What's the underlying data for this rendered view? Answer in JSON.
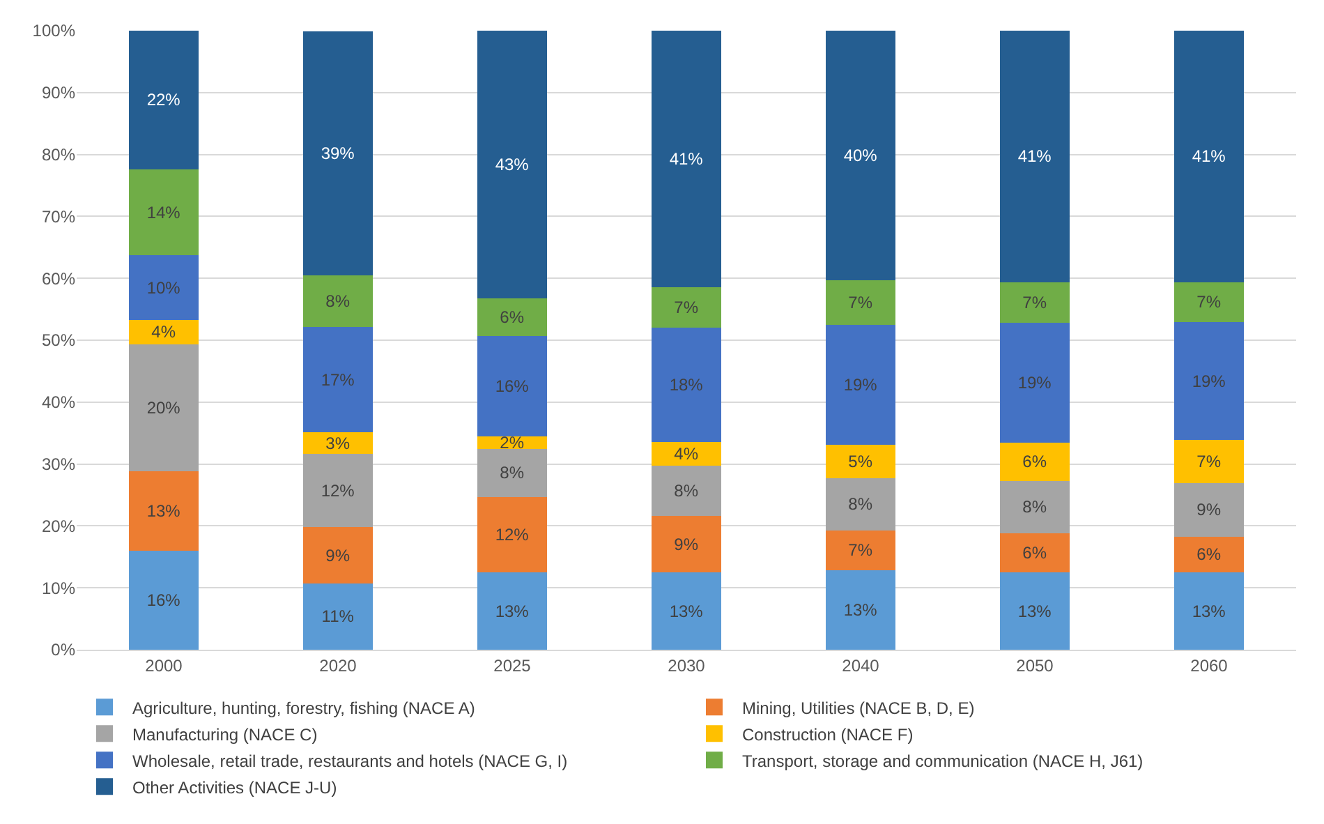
{
  "chart_data": {
    "type": "bar",
    "stacked": true,
    "categories": [
      "2000",
      "2020",
      "2025",
      "2030",
      "2040",
      "2050",
      "2060"
    ],
    "series": [
      {
        "name": "Agriculture, hunting, forestry, fishing (NACE A)",
        "color": "#5b9bd5",
        "values": [
          16.0,
          10.7,
          12.5,
          12.5,
          12.8,
          12.5,
          12.5
        ],
        "value_labels": [
          "16%",
          "11%",
          "13%",
          "13%",
          "13%",
          "13%",
          "13%"
        ]
      },
      {
        "name": "Mining, Utilities (NACE B, D, E)",
        "color": "#ed7d31",
        "values": [
          12.8,
          9.1,
          12.2,
          9.1,
          6.5,
          6.3,
          5.8
        ],
        "value_labels": [
          "13%",
          "9%",
          "12%",
          "9%",
          "7%",
          "6%",
          "6%"
        ]
      },
      {
        "name": "Manufacturing (NACE C)",
        "color": "#a5a5a5",
        "values": [
          20.5,
          11.8,
          7.7,
          8.1,
          8.4,
          8.5,
          8.6
        ],
        "value_labels": [
          "20%",
          "12%",
          "8%",
          "8%",
          "8%",
          "8%",
          "9%"
        ]
      },
      {
        "name": "Construction (NACE F)",
        "color": "#ffc000",
        "values": [
          4.0,
          3.5,
          2.1,
          3.9,
          5.4,
          6.1,
          7.0
        ],
        "value_labels": [
          "4%",
          "3%",
          "2%",
          "4%",
          "5%",
          "6%",
          "7%"
        ]
      },
      {
        "name": "Wholesale, retail trade, restaurants and hotels (NACE G, I)",
        "color": "#4472c4",
        "values": [
          10.4,
          17.0,
          16.2,
          18.4,
          19.4,
          19.4,
          19.0
        ],
        "value_labels": [
          "10%",
          "17%",
          "16%",
          "18%",
          "19%",
          "19%",
          "19%"
        ]
      },
      {
        "name": "Transport, storage and communication (NACE H, J61)",
        "color": "#70ad47",
        "values": [
          13.9,
          8.4,
          6.1,
          6.6,
          7.2,
          6.6,
          6.5
        ],
        "value_labels": [
          "14%",
          "8%",
          "6%",
          "7%",
          "7%",
          "7%",
          "7%"
        ]
      },
      {
        "name": "Other Activities (NACE J-U)",
        "color": "#255e91",
        "values": [
          22.4,
          39.4,
          43.2,
          41.4,
          40.3,
          40.6,
          40.6
        ],
        "value_labels": [
          "22%",
          "39%",
          "43%",
          "41%",
          "40%",
          "41%",
          "41%"
        ]
      }
    ],
    "ylim": [
      0,
      100
    ],
    "yticks": [
      {
        "value": 0,
        "label": "0%"
      },
      {
        "value": 10,
        "label": "10%"
      },
      {
        "value": 20,
        "label": "20%"
      },
      {
        "value": 30,
        "label": "30%"
      },
      {
        "value": 40,
        "label": "40%"
      },
      {
        "value": 50,
        "label": "50%"
      },
      {
        "value": 60,
        "label": "60%"
      },
      {
        "value": 70,
        "label": "70%"
      },
      {
        "value": 80,
        "label": "80%"
      },
      {
        "value": 90,
        "label": "90%"
      },
      {
        "value": 100,
        "label": "100%"
      }
    ],
    "grid": "y",
    "legend": "bottom"
  }
}
